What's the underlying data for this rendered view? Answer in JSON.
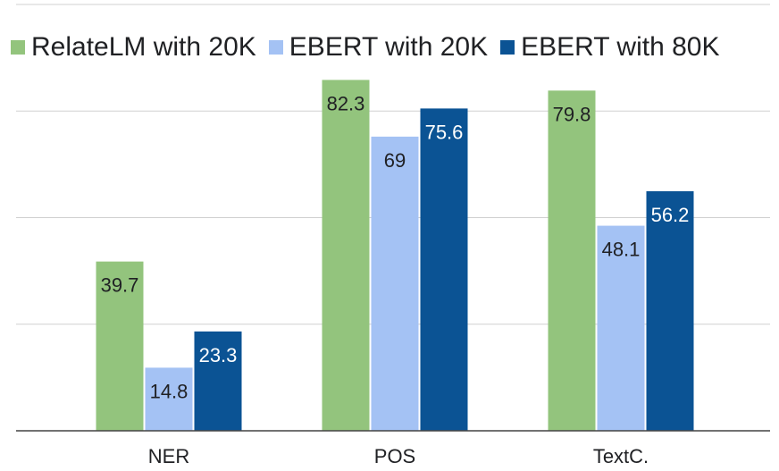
{
  "chart_data": {
    "type": "bar",
    "title": "",
    "xlabel": "",
    "ylabel": "",
    "categories": [
      "NER",
      "POS",
      "TextC."
    ],
    "series": [
      {
        "name": "RelateLM with 20K",
        "color": "#93c47d",
        "values": [
          39.7,
          82.3,
          79.8
        ]
      },
      {
        "name": "EBERT with 20K",
        "color": "#a4c2f4",
        "values": [
          14.8,
          69,
          48.1
        ]
      },
      {
        "name": "EBERT with 80K",
        "color": "#0b5394",
        "values": [
          23.3,
          75.6,
          56.2
        ]
      }
    ],
    "ylim": [
      0,
      100
    ],
    "grid": true,
    "legend_position": "top",
    "data_labels": true
  }
}
